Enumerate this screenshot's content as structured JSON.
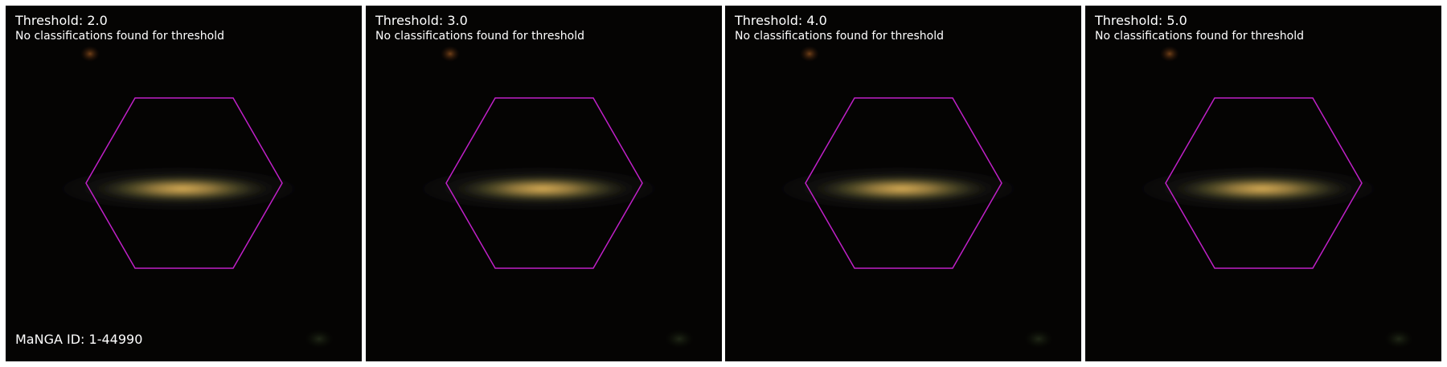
{
  "panels": [
    {
      "title": "Threshold: 2.0",
      "message": "No classifications found for threshold"
    },
    {
      "title": "Threshold: 3.0",
      "message": "No classifications found for threshold"
    },
    {
      "title": "Threshold: 4.0",
      "message": "No classifications found for threshold"
    },
    {
      "title": "Threshold: 5.0",
      "message": "No classifications found for threshold"
    }
  ],
  "galaxy": {
    "manga_id_label": "MaNGA ID: 1-44990"
  },
  "colors": {
    "background": "#050403",
    "hexagon_stroke": "#c020c8",
    "galaxy_core": "#e0b060",
    "text": "#ffffff"
  }
}
